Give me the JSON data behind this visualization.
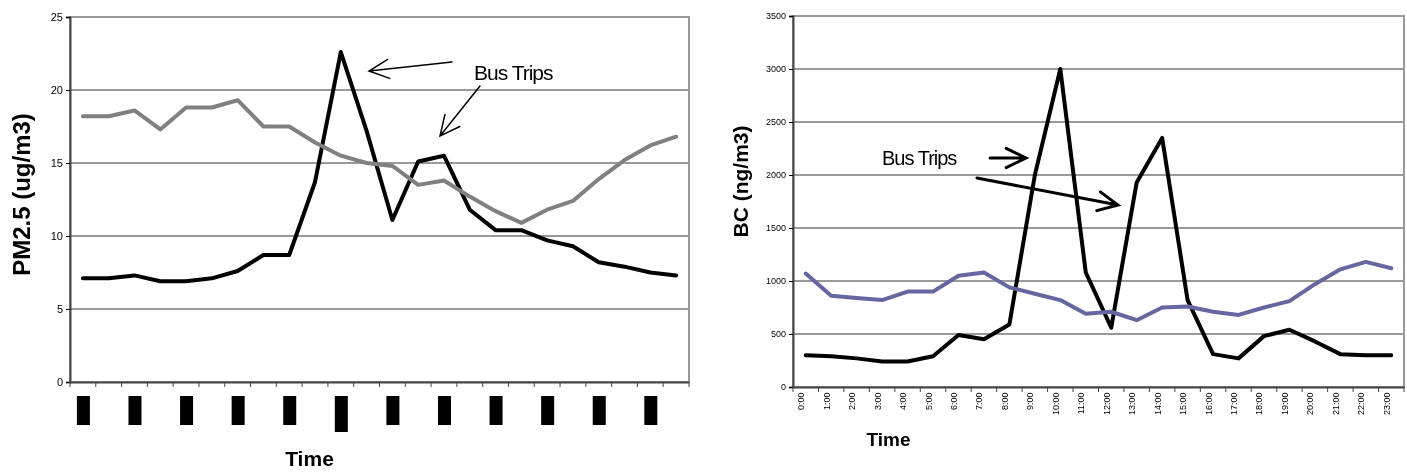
{
  "chart_data": [
    {
      "type": "line",
      "ylabel": "PM2.5 (ug/m3)",
      "xlabel": "Time",
      "categories": [
        null,
        null,
        null,
        null,
        null,
        null,
        null,
        null,
        null,
        null,
        null,
        null,
        null,
        null,
        null,
        null,
        null,
        null,
        null,
        null,
        null,
        null,
        null,
        null
      ],
      "series": [
        {
          "color": "#000000",
          "values": [
            7.1,
            7.1,
            7.3,
            6.9,
            6.9,
            7.1,
            7.6,
            8.7,
            8.7,
            13.7,
            22.6,
            17.2,
            11.1,
            15.1,
            15.5,
            11.8,
            10.4,
            10.4,
            9.7,
            9.3,
            8.2,
            7.9,
            7.5,
            7.3
          ]
        },
        {
          "color": "#808080",
          "values": [
            18.2,
            18.2,
            18.6,
            17.3,
            18.8,
            18.8,
            19.3,
            17.5,
            17.5,
            16.4,
            15.5,
            15.0,
            14.8,
            13.5,
            13.8,
            12.7,
            11.7,
            10.9,
            11.8,
            12.4,
            13.9,
            15.2,
            16.2,
            16.8
          ]
        }
      ],
      "ylim": [
        0,
        25
      ],
      "yticks": [
        0,
        5,
        10,
        15,
        20,
        25
      ],
      "grid": "y",
      "marker": "none",
      "line_style": "solid",
      "annotations": [
        "Bus Trips"
      ]
    },
    {
      "type": "line",
      "ylabel": "BC (ng/m3)",
      "xlabel": "Time",
      "categories": [
        "0:00",
        "1:00",
        "2:00",
        "3:00",
        "4:00",
        "5:00",
        "6:00",
        "7:00",
        "8:00",
        "9:00",
        "10:00",
        "11:00",
        "12:00",
        "13:00",
        "14:00",
        "15:00",
        "16:00",
        "17:00",
        "18:00",
        "19:00",
        "20:00",
        "21:00",
        "22:00",
        "23:00"
      ],
      "series": [
        {
          "color": "#000000",
          "values": [
            300,
            290,
            270,
            240,
            240,
            290,
            490,
            450,
            590,
            2000,
            3000,
            1080,
            560,
            1930,
            2350,
            820,
            310,
            270,
            480,
            540,
            430,
            310,
            300,
            300
          ]
        },
        {
          "color": "#6666a0",
          "values": [
            1070,
            860,
            840,
            820,
            900,
            900,
            1050,
            1080,
            940,
            880,
            820,
            690,
            710,
            630,
            750,
            760,
            710,
            680,
            750,
            810,
            970,
            1110,
            1180,
            1120
          ]
        }
      ],
      "ylim": [
        0,
        3500
      ],
      "yticks": [
        0,
        500,
        1000,
        1500,
        2000,
        2500,
        3000,
        3500
      ],
      "grid": "y",
      "marker": "none",
      "line_style": "solid",
      "annotations": [
        "Bus Trips"
      ]
    }
  ]
}
